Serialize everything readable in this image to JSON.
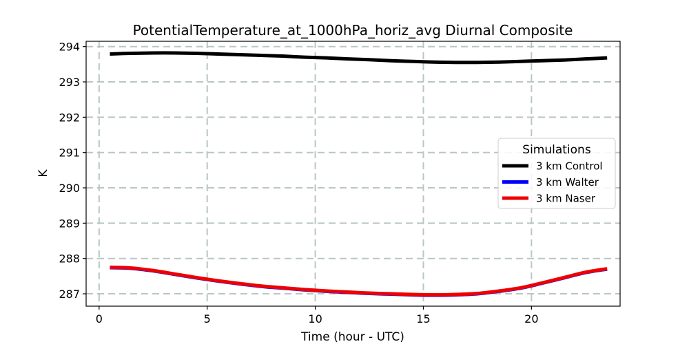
{
  "chart_data": {
    "type": "line",
    "title": "PotentialTemperature_at_1000hPa_horiz_avg Diurnal Composite",
    "xlabel": "Time (hour - UTC)",
    "ylabel": "K",
    "xlim": [
      -0.6,
      24.1
    ],
    "ylim": [
      286.65,
      294.15
    ],
    "xticks": [
      0,
      5,
      10,
      15,
      20
    ],
    "yticks": [
      287,
      288,
      289,
      290,
      291,
      292,
      293,
      294
    ],
    "grid": true,
    "legend": {
      "title": "Simulations",
      "placement": "center-right"
    },
    "x": [
      0.5,
      1.5,
      2.5,
      3.5,
      4.5,
      5.5,
      6.5,
      7.5,
      8.5,
      9.5,
      10.5,
      11.5,
      12.5,
      13.5,
      14.5,
      15.5,
      16.5,
      17.5,
      18.5,
      19.5,
      20.5,
      21.5,
      22.5,
      23.5
    ],
    "series": [
      {
        "name": "3 km Control",
        "color": "#000000",
        "values": [
          293.79,
          293.81,
          293.82,
          293.82,
          293.81,
          293.79,
          293.77,
          293.75,
          293.73,
          293.7,
          293.68,
          293.65,
          293.63,
          293.6,
          293.58,
          293.56,
          293.55,
          293.55,
          293.56,
          293.58,
          293.6,
          293.62,
          293.65,
          293.68
        ]
      },
      {
        "name": "3 km Walter",
        "color": "#0000ff",
        "values": [
          287.74,
          287.72,
          287.65,
          287.55,
          287.45,
          287.36,
          287.28,
          287.21,
          287.16,
          287.11,
          287.07,
          287.04,
          287.01,
          286.99,
          286.97,
          286.96,
          286.97,
          287.0,
          287.07,
          287.16,
          287.3,
          287.45,
          287.6,
          287.7
        ]
      },
      {
        "name": "3 km Naser",
        "color": "#ee0000",
        "values": [
          287.75,
          287.73,
          287.66,
          287.56,
          287.46,
          287.37,
          287.29,
          287.22,
          287.17,
          287.12,
          287.08,
          287.05,
          287.02,
          287.0,
          286.98,
          286.97,
          286.98,
          287.01,
          287.08,
          287.17,
          287.31,
          287.46,
          287.61,
          287.71
        ]
      }
    ]
  }
}
